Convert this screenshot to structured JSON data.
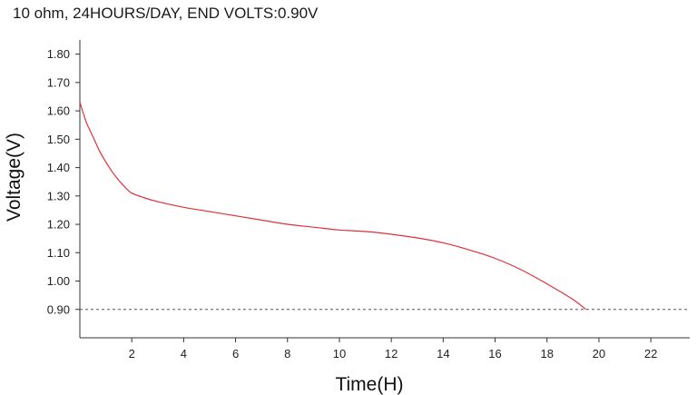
{
  "chart_data": {
    "type": "line",
    "title": "10 ohm, 24HOURS/DAY, END VOLTS:0.90V",
    "xlabel": "Time(H)",
    "ylabel": "Voltage(V)",
    "xlim": [
      0,
      23.5
    ],
    "ylim": [
      0.8,
      1.85
    ],
    "x_ticks": [
      2,
      4,
      6,
      8,
      10,
      12,
      14,
      16,
      18,
      20,
      22
    ],
    "x_tick_labels": [
      "2",
      "4",
      "6",
      "8",
      "10",
      "12",
      "14",
      "16",
      "18",
      "20",
      "22"
    ],
    "y_ticks": [
      0.9,
      1.0,
      1.1,
      1.2,
      1.3,
      1.4,
      1.5,
      1.6,
      1.7,
      1.8
    ],
    "y_tick_labels": [
      "0.90",
      "1.00",
      "1.10",
      "1.20",
      "1.30",
      "1.40",
      "1.50",
      "1.60",
      "1.70",
      "1.80"
    ],
    "grid": false,
    "series": [
      {
        "color": "#e0303a",
        "x": [
          0,
          0.25,
          0.5,
          0.75,
          1.0,
          1.25,
          1.5,
          1.75,
          2.0,
          2.5,
          3,
          4,
          5,
          6,
          7,
          8,
          9,
          10,
          11,
          12,
          13,
          14,
          15,
          16,
          17,
          18,
          19,
          19.5
        ],
        "y": [
          1.63,
          1.56,
          1.51,
          1.46,
          1.42,
          1.385,
          1.355,
          1.33,
          1.31,
          1.293,
          1.28,
          1.26,
          1.245,
          1.23,
          1.215,
          1.2,
          1.19,
          1.18,
          1.175,
          1.165,
          1.152,
          1.135,
          1.11,
          1.08,
          1.04,
          0.99,
          0.935,
          0.9
        ]
      }
    ],
    "reference_line": {
      "y": 0.9,
      "style": "dashed",
      "color": "#555555"
    }
  }
}
